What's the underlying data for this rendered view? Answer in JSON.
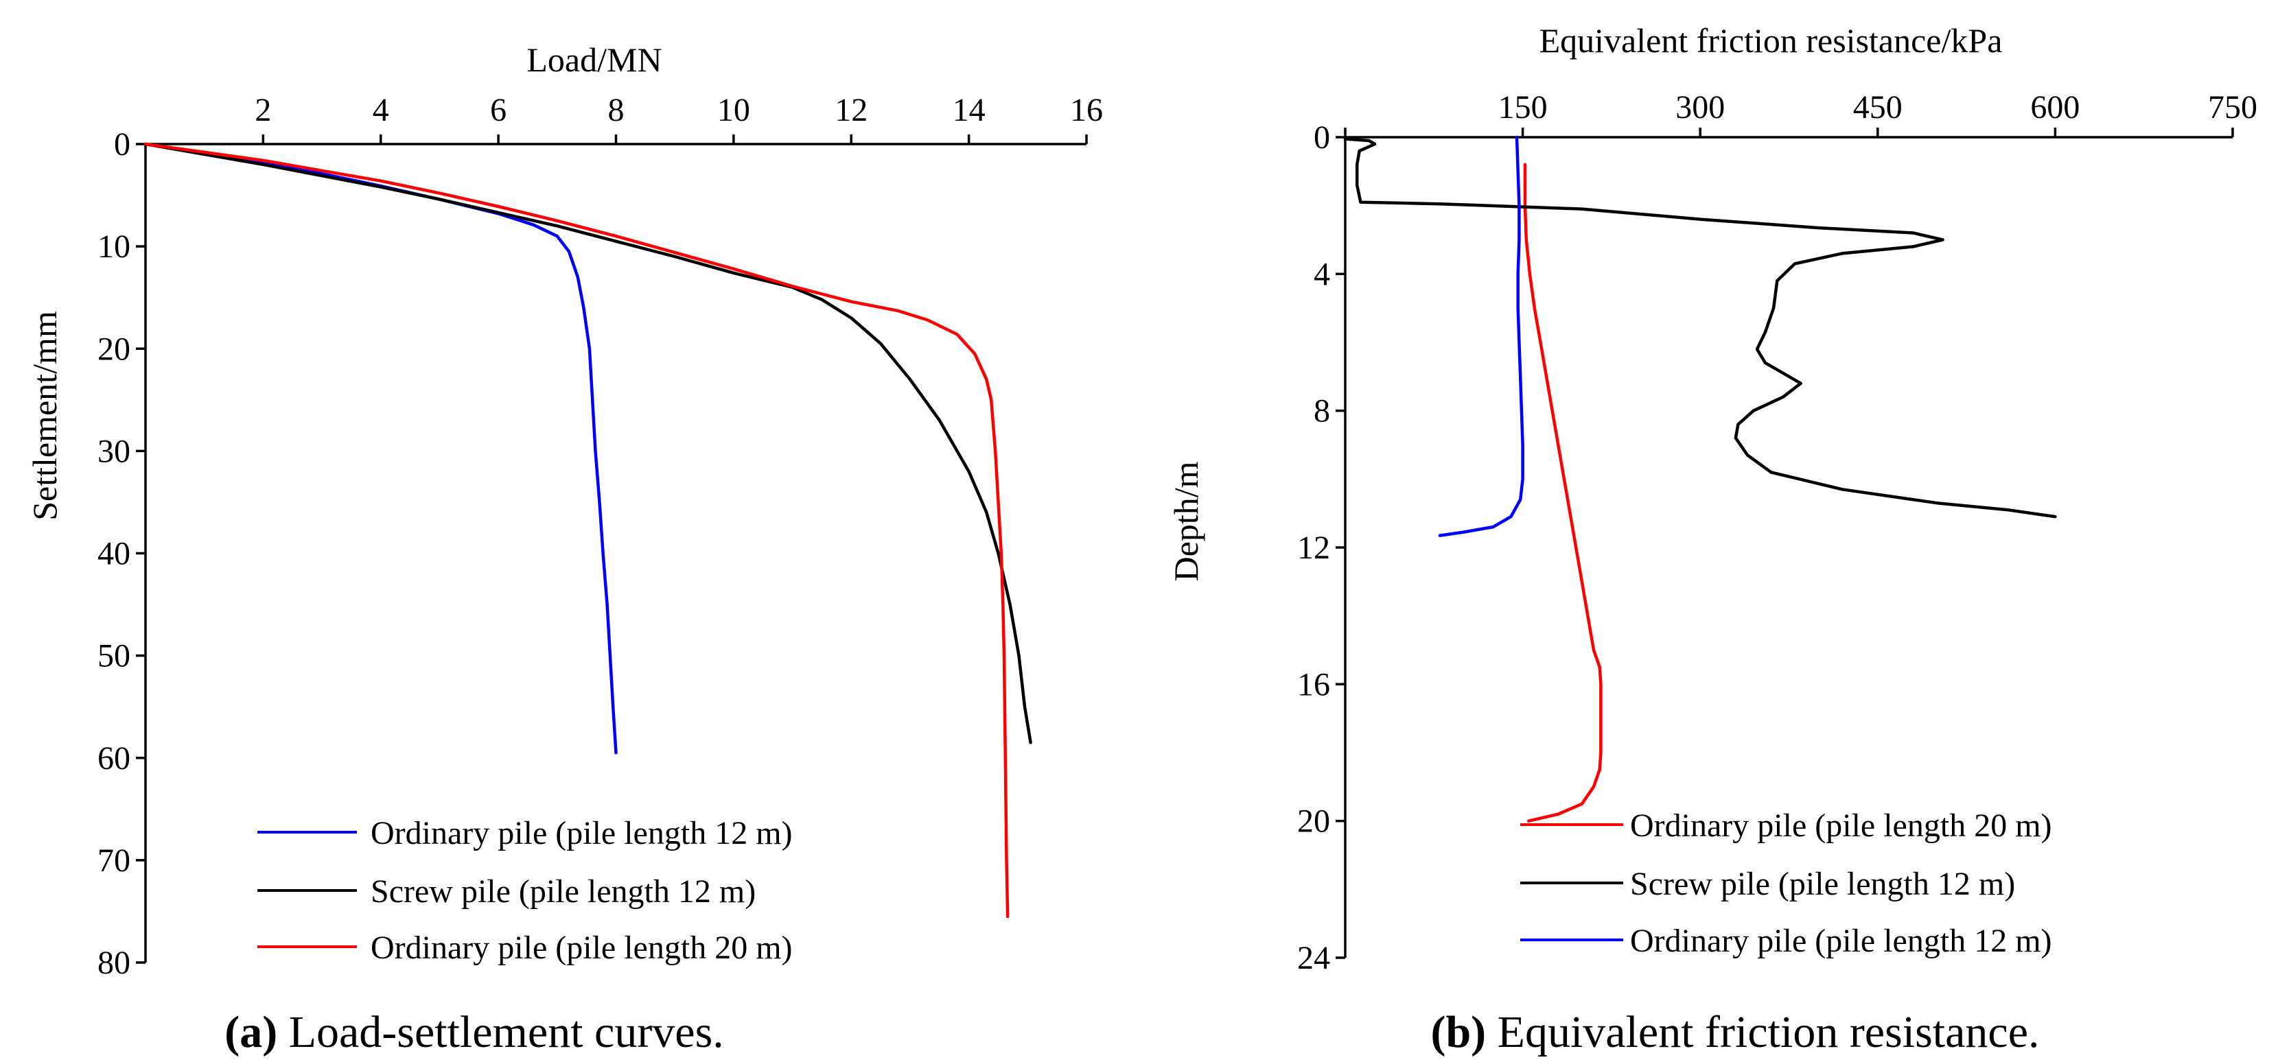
{
  "chart_data": [
    {
      "type": "line",
      "caption_letter": "(a)",
      "caption_rest": " Load-settlement curves.",
      "xlabel": "Load/MN",
      "ylabel": "Settlement/mm",
      "xlim": [
        0,
        16
      ],
      "ylim": [
        0,
        80
      ],
      "x_axis_position": "top",
      "y_inverted": true,
      "xticks": [
        2,
        4,
        6,
        8,
        10,
        12,
        14,
        16
      ],
      "yticks": [
        0,
        10,
        20,
        30,
        40,
        50,
        60,
        70,
        80
      ],
      "grid": false,
      "legend_position": "bottom-right",
      "series": [
        {
          "name": "Ordinary pile (pile length 12 m)",
          "color": "#0000ff",
          "points": [
            [
              0,
              0
            ],
            [
              1,
              0.9
            ],
            [
              2,
              1.8
            ],
            [
              3,
              2.9
            ],
            [
              4,
              4.1
            ],
            [
              5,
              5.4
            ],
            [
              6,
              6.8
            ],
            [
              6.6,
              7.9
            ],
            [
              7,
              9
            ],
            [
              7.2,
              10.5
            ],
            [
              7.35,
              13
            ],
            [
              7.45,
              16
            ],
            [
              7.55,
              20
            ],
            [
              7.6,
              25
            ],
            [
              7.65,
              30
            ],
            [
              7.72,
              35
            ],
            [
              7.78,
              40
            ],
            [
              7.85,
              45
            ],
            [
              7.9,
              50
            ],
            [
              7.95,
              55
            ],
            [
              8.0,
              59.5
            ]
          ]
        },
        {
          "name": "Screw pile (pile length 12 m)",
          "color": "#000000",
          "points": [
            [
              0,
              0
            ],
            [
              1,
              1
            ],
            [
              2,
              2
            ],
            [
              3,
              3.1
            ],
            [
              4,
              4.2
            ],
            [
              5,
              5.4
            ],
            [
              6,
              6.7
            ],
            [
              7,
              8
            ],
            [
              8,
              9.5
            ],
            [
              9,
              11
            ],
            [
              10,
              12.6
            ],
            [
              11,
              14
            ],
            [
              11.5,
              15.2
            ],
            [
              12,
              17
            ],
            [
              12.5,
              19.5
            ],
            [
              13,
              23
            ],
            [
              13.5,
              27
            ],
            [
              14,
              32
            ],
            [
              14.3,
              36
            ],
            [
              14.5,
              40
            ],
            [
              14.7,
              45
            ],
            [
              14.85,
              50
            ],
            [
              14.95,
              55
            ],
            [
              15.05,
              58.5
            ]
          ]
        },
        {
          "name": "Ordinary pile (pile length 20 m)",
          "color": "#ff0000",
          "points": [
            [
              0,
              0
            ],
            [
              1,
              0.8
            ],
            [
              2,
              1.6
            ],
            [
              3,
              2.6
            ],
            [
              4,
              3.6
            ],
            [
              5,
              4.8
            ],
            [
              6,
              6.1
            ],
            [
              7,
              7.5
            ],
            [
              8,
              9
            ],
            [
              9,
              10.6
            ],
            [
              10,
              12.2
            ],
            [
              11,
              13.9
            ],
            [
              12,
              15.4
            ],
            [
              12.8,
              16.3
            ],
            [
              13.3,
              17.2
            ],
            [
              13.8,
              18.6
            ],
            [
              14.1,
              20.5
            ],
            [
              14.3,
              23
            ],
            [
              14.38,
              25
            ],
            [
              14.45,
              30
            ],
            [
              14.5,
              35
            ],
            [
              14.55,
              40
            ],
            [
              14.58,
              45
            ],
            [
              14.6,
              50
            ],
            [
              14.62,
              60
            ],
            [
              14.64,
              70
            ],
            [
              14.66,
              75.5
            ]
          ]
        }
      ]
    },
    {
      "type": "line",
      "caption_letter": "(b)",
      "caption_rest": " Equivalent friction resistance.",
      "xlabel": "Equivalent friction resistance/kPa",
      "ylabel": "Depth/m",
      "xlim": [
        0,
        750
      ],
      "ylim": [
        0,
        24
      ],
      "x_axis_position": "top",
      "y_inverted": true,
      "xticks": [
        0,
        150,
        300,
        450,
        600,
        750
      ],
      "yticks": [
        0,
        4,
        8,
        12,
        16,
        20,
        24
      ],
      "grid": false,
      "legend_position": "bottom-right",
      "series": [
        {
          "name": "Ordinary pile (pile length 20 m)",
          "color": "#ff0000",
          "points": [
            [
              152,
              0.8
            ],
            [
              152,
              2
            ],
            [
              153,
              3
            ],
            [
              156,
              4
            ],
            [
              160,
              5
            ],
            [
              165,
              6
            ],
            [
              170,
              7
            ],
            [
              175,
              8
            ],
            [
              180,
              9
            ],
            [
              185,
              10
            ],
            [
              190,
              11
            ],
            [
              195,
              12
            ],
            [
              200,
              13
            ],
            [
              205,
              14
            ],
            [
              210,
              15
            ],
            [
              215,
              15.5
            ],
            [
              216,
              16
            ],
            [
              216,
              17
            ],
            [
              216,
              18
            ],
            [
              215,
              18.5
            ],
            [
              210,
              19
            ],
            [
              200,
              19.5
            ],
            [
              180,
              19.8
            ],
            [
              155,
              20
            ]
          ]
        },
        {
          "name": "Screw pile (pile length 12 m)",
          "color": "#000000",
          "points": [
            [
              0,
              0.05
            ],
            [
              20,
              0.1
            ],
            [
              25,
              0.2
            ],
            [
              12,
              0.4
            ],
            [
              10,
              0.8
            ],
            [
              10,
              1.4
            ],
            [
              13,
              1.9
            ],
            [
              80,
              1.95
            ],
            [
              200,
              2.1
            ],
            [
              300,
              2.4
            ],
            [
              400,
              2.65
            ],
            [
              480,
              2.8
            ],
            [
              505,
              3.0
            ],
            [
              480,
              3.2
            ],
            [
              420,
              3.4
            ],
            [
              380,
              3.7
            ],
            [
              365,
              4.2
            ],
            [
              362,
              5
            ],
            [
              355,
              5.7
            ],
            [
              348,
              6.2
            ],
            [
              355,
              6.6
            ],
            [
              375,
              7
            ],
            [
              385,
              7.2
            ],
            [
              370,
              7.6
            ],
            [
              345,
              8.0
            ],
            [
              332,
              8.4
            ],
            [
              330,
              8.8
            ],
            [
              340,
              9.3
            ],
            [
              360,
              9.8
            ],
            [
              420,
              10.3
            ],
            [
              500,
              10.7
            ],
            [
              560,
              10.9
            ],
            [
              600,
              11.1
            ]
          ]
        },
        {
          "name": "Ordinary pile (pile length 12 m)",
          "color": "#0000ff",
          "points": [
            [
              145,
              0
            ],
            [
              146,
              1
            ],
            [
              147,
              2
            ],
            [
              147,
              3
            ],
            [
              146,
              4
            ],
            [
              146,
              5
            ],
            [
              147,
              6
            ],
            [
              148,
              7
            ],
            [
              149,
              8
            ],
            [
              150,
              9
            ],
            [
              150,
              10
            ],
            [
              148,
              10.6
            ],
            [
              140,
              11.1
            ],
            [
              125,
              11.4
            ],
            [
              100,
              11.55
            ],
            [
              80,
              11.65
            ]
          ]
        }
      ]
    }
  ]
}
